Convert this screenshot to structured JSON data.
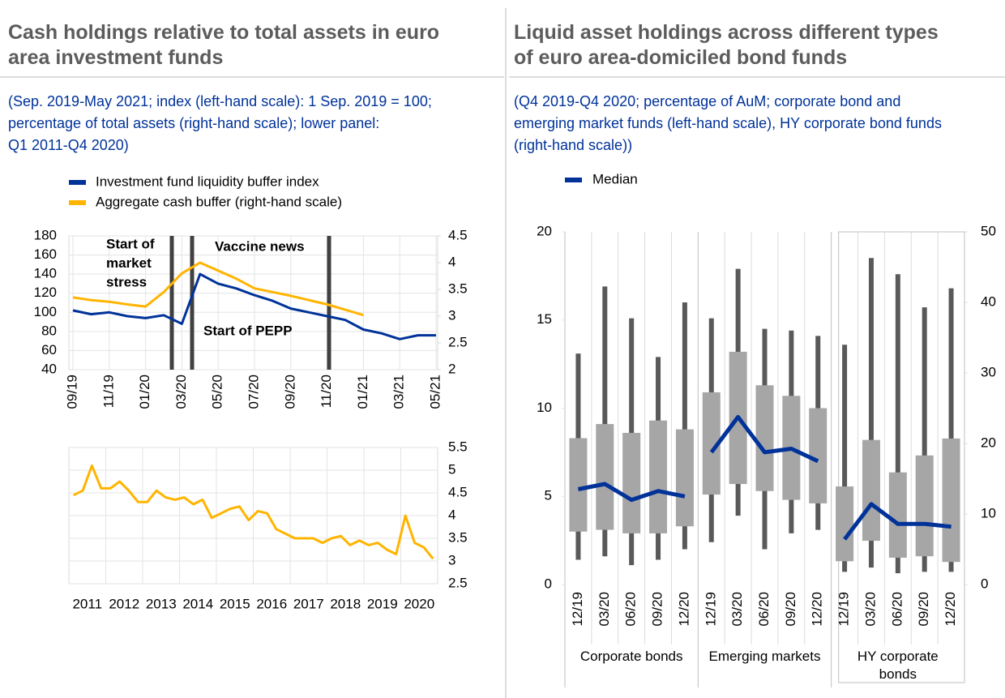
{
  "chart_data": [
    {
      "type": "line",
      "title": [
        "Cash holdings relative to total assets in euro",
        "area investment funds"
      ],
      "subtitle": [
        "(Sep. 2019-May 2021; index (left-hand scale): 1 Sep. 2019 = 100;",
        "percentage of total assets (right-hand scale); lower panel:",
        "Q1 2011-Q4 2020)"
      ],
      "categories": [
        "09/19",
        null,
        "11/19",
        null,
        "01/20",
        null,
        "03/20",
        null,
        "05/20",
        null,
        "07/20",
        null,
        "09/20",
        null,
        "11/20",
        null,
        "01/21",
        null,
        "03/21",
        null,
        "05/21"
      ],
      "series": [
        {
          "name": "Investment fund liquidity buffer index",
          "color": "#003299",
          "values": [
            102,
            98,
            100,
            96,
            94,
            97,
            88,
            140,
            130,
            125,
            118,
            112,
            104,
            100,
            96,
            92,
            82,
            78,
            72,
            76,
            76
          ]
        },
        {
          "name": "Aggregate cash buffer (right-hand scale)",
          "color": "#ffb400",
          "axis": "y2",
          "values": [
            3.35,
            3.3,
            3.27,
            3.22,
            3.18,
            3.45,
            3.8,
            4.0,
            3.85,
            3.7,
            3.52,
            3.45,
            3.38,
            3.3,
            3.22,
            3.12,
            3.02,
            null,
            null,
            null,
            null
          ]
        }
      ],
      "ylim": [
        40,
        180
      ],
      "yticks": [
        40,
        60,
        80,
        100,
        120,
        140,
        160,
        180
      ],
      "y2lim": [
        2,
        4.5
      ],
      "y2ticks": [
        2,
        2.5,
        3,
        3.5,
        4,
        4.5
      ],
      "grid": true,
      "annotations": [
        [
          "Start of",
          "market",
          "stress"
        ],
        [
          "Vaccine news"
        ],
        [
          "Start of PEPP"
        ]
      ]
    },
    {
      "type": "line",
      "categories": [
        "2011",
        null,
        null,
        null,
        "2012",
        null,
        null,
        null,
        "2013",
        null,
        null,
        null,
        "2014",
        null,
        null,
        null,
        "2015",
        null,
        null,
        null,
        "2016",
        null,
        null,
        null,
        "2017",
        null,
        null,
        null,
        "2018",
        null,
        null,
        null,
        "2019",
        null,
        null,
        null,
        "2020",
        null,
        null,
        null
      ],
      "series": [
        {
          "color": "#ffb400",
          "axis": "y2",
          "values": [
            4.45,
            4.55,
            5.1,
            4.6,
            4.6,
            4.75,
            4.55,
            4.3,
            4.3,
            4.55,
            4.4,
            4.35,
            4.4,
            4.25,
            4.35,
            3.95,
            4.05,
            4.15,
            4.2,
            3.9,
            4.1,
            4.05,
            3.7,
            3.6,
            3.5,
            3.5,
            3.5,
            3.4,
            3.5,
            3.55,
            3.35,
            3.45,
            3.35,
            3.4,
            3.25,
            3.15,
            4.0,
            3.4,
            3.3,
            3.05
          ]
        }
      ],
      "y2lim": [
        2.5,
        5.5
      ],
      "y2ticks": [
        2.5,
        3,
        3.5,
        4,
        4.5,
        5,
        5.5
      ],
      "grid": true
    },
    {
      "type": "box",
      "title": [
        "Liquid asset holdings across different types",
        "of euro area-domiciled bond funds"
      ],
      "subtitle": [
        "(Q4 2019-Q4 2020; percentage of AuM; corporate bond and",
        "emerging market funds (left-hand scale), HY corporate bond funds",
        "(right-hand scale))"
      ],
      "median_label": "Median",
      "median_color": "#003299",
      "box_color": "#a6a6a6",
      "whisker_color": "#595959",
      "groups": [
        {
          "name": "Corporate bonds",
          "axis": "y",
          "categories": [
            "12/19",
            "03/20",
            "06/20",
            "09/20",
            "12/20"
          ],
          "low": [
            1.4,
            1.6,
            1.1,
            1.4,
            2.0
          ],
          "q1": [
            3.0,
            3.1,
            2.9,
            2.9,
            3.3
          ],
          "median": [
            5.4,
            5.7,
            4.8,
            5.3,
            5.0
          ],
          "q3": [
            8.3,
            9.1,
            8.6,
            9.3,
            8.8
          ],
          "high": [
            13.1,
            16.9,
            15.1,
            12.9,
            16.0
          ]
        },
        {
          "name": "Emerging markets",
          "axis": "y",
          "categories": [
            "12/19",
            "03/20",
            "06/20",
            "09/20",
            "12/20"
          ],
          "low": [
            2.4,
            3.9,
            2.0,
            2.9,
            3.1
          ],
          "q1": [
            5.1,
            5.7,
            5.3,
            4.8,
            4.6
          ],
          "median": [
            7.5,
            9.5,
            7.5,
            7.7,
            7.0
          ],
          "q3": [
            10.9,
            13.2,
            11.3,
            10.7,
            10.0
          ],
          "high": [
            15.1,
            17.9,
            14.5,
            14.4,
            14.1
          ]
        },
        {
          "name": "HY corporate bonds",
          "axis": "y2",
          "categories": [
            "12/19",
            "03/20",
            "06/20",
            "09/20",
            "12/20"
          ],
          "low": [
            1.8,
            2.4,
            1.6,
            1.8,
            1.8
          ],
          "q1": [
            3.3,
            6.2,
            3.8,
            4.0,
            3.2
          ],
          "median": [
            6.4,
            11.4,
            8.6,
            8.6,
            8.2
          ],
          "q3": [
            13.9,
            20.5,
            15.9,
            18.3,
            20.7
          ],
          "high": [
            34,
            46.3,
            44,
            39.3,
            42
          ]
        }
      ],
      "ylim": [
        0,
        20
      ],
      "yticks": [
        0,
        5,
        10,
        15,
        20
      ],
      "y2lim": [
        0,
        50
      ],
      "y2ticks": [
        0,
        10,
        20,
        30,
        40,
        50
      ]
    }
  ]
}
